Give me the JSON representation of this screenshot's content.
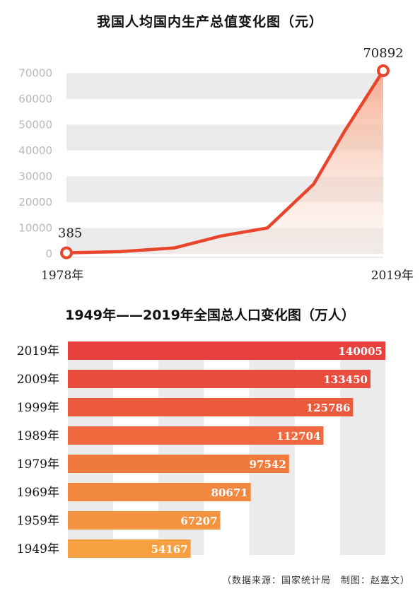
{
  "source": "（数据来源：国家统计局　制图：赵嘉文）",
  "chart_data": [
    {
      "type": "area",
      "title": "我国人均国内生产总值变化图（元）",
      "y_ticks": [
        0,
        10000,
        20000,
        30000,
        40000,
        50000,
        60000,
        70000
      ],
      "ylim": [
        0,
        70892
      ],
      "x_start_label": "1978年",
      "x_end_label": "2019年",
      "start_value": "385",
      "end_value": "70892",
      "x": [
        1978,
        1985,
        1992,
        1998,
        2004,
        2010,
        2014,
        2019
      ],
      "values": [
        385,
        860,
        2300,
        6900,
        10000,
        27000,
        47500,
        70892
      ],
      "colors": {
        "line": "#e8452c",
        "area_top": "#f6a98b",
        "marker": "#e8452c",
        "band": "#ebebeb"
      }
    },
    {
      "type": "bar",
      "title": "1949年——2019年全国总人口变化图（万人）",
      "categories": [
        "2019年",
        "2009年",
        "1999年",
        "1989年",
        "1979年",
        "1969年",
        "1959年",
        "1949年"
      ],
      "values": [
        140005,
        133450,
        125786,
        112704,
        97542,
        80671,
        67207,
        54167
      ],
      "xlim": [
        0,
        140005
      ],
      "colors": [
        "#e8403c",
        "#ea4d3d",
        "#ec5a3e",
        "#ee6a3e",
        "#f07a3e",
        "#f2873f",
        "#f49440",
        "#f6a042"
      ]
    }
  ]
}
